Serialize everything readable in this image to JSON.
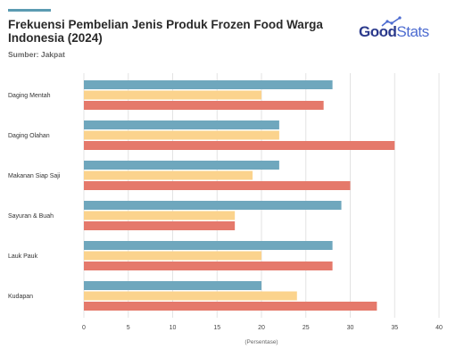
{
  "header": {
    "title": "Frekuensi Pembelian Jenis Produk Frozen Food Warga Indonesia (2024)",
    "source": "Sumber: Jakpat",
    "logo_good": "Good",
    "logo_stats": "Stats"
  },
  "colors": {
    "series": [
      "#6fa7bd",
      "#fbd38d",
      "#e5796b"
    ],
    "accent": "#5b9bb2",
    "logo_primary": "#2b3a8c",
    "logo_secondary": "#4c6bd0"
  },
  "chart_data": {
    "type": "bar",
    "orientation": "horizontal",
    "title": "Frekuensi Pembelian Jenis Produk Frozen Food Warga Indonesia (2024)",
    "categories": [
      "Daging Mentah",
      "Daging Olahan",
      "Makanan Siap Saji",
      "Sayuran & Buah",
      "Lauk Pauk",
      "Kudapan"
    ],
    "series": [
      {
        "values": [
          28,
          22,
          22,
          29,
          28,
          20
        ]
      },
      {
        "values": [
          20,
          22,
          19,
          17,
          20,
          24
        ]
      },
      {
        "values": [
          27,
          35,
          30,
          17,
          28,
          33
        ]
      }
    ],
    "xlabel": "(Persentase)",
    "ylabel": "",
    "xlim": [
      0,
      40
    ],
    "xticks": [
      0,
      5,
      10,
      15,
      20,
      25,
      30,
      35,
      40
    ],
    "grid": true,
    "legend": "bottom"
  }
}
